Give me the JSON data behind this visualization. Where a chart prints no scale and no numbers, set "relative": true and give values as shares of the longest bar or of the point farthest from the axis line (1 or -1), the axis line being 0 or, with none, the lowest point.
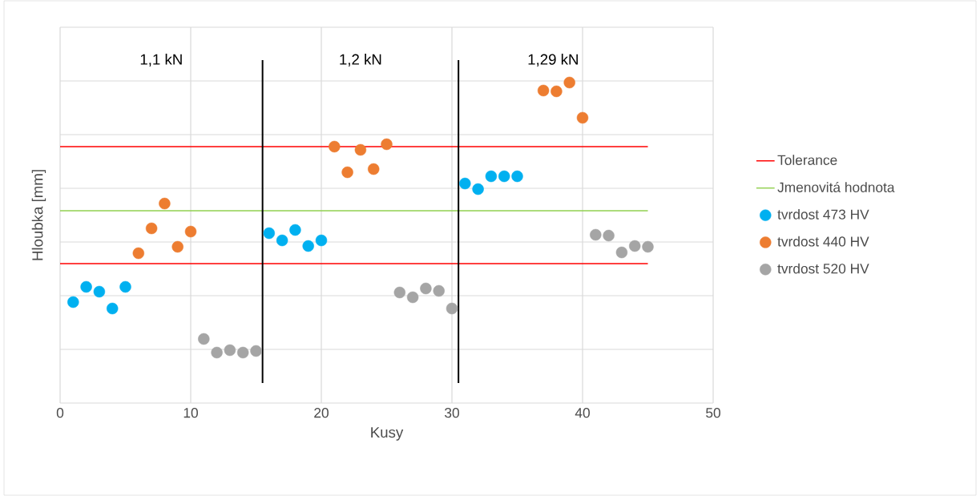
{
  "chart_data": {
    "type": "scatter",
    "relative": true,
    "xlabel": "Kusy",
    "ylabel": "Hloubka [mm]",
    "xlim": [
      0,
      50
    ],
    "xticks": [
      0,
      10,
      20,
      30,
      40,
      50
    ],
    "grid": true,
    "legend": "right",
    "marker": "circle",
    "annotations": [
      "1,1  kN",
      "1,2 kN",
      "1,29 kN"
    ],
    "ref_lines": [
      {
        "axis": "x",
        "value": 15.5,
        "color": "#000000"
      },
      {
        "axis": "x",
        "value": 30.5,
        "color": "#000000"
      }
    ],
    "series": [
      {
        "name": "Tolerance",
        "type": "line",
        "marker": "none",
        "color": "#ff0000",
        "x": [
          0,
          45
        ],
        "values": [
          0.8,
          0.8
        ]
      },
      {
        "name": "Jmenovitá hodnota",
        "type": "line",
        "marker": "none",
        "color": "#92d050",
        "x": [
          0,
          45
        ],
        "values": [
          0.6,
          0.6
        ]
      },
      {
        "type": "line",
        "marker": "none",
        "color": "#ff0000",
        "x": [
          0,
          45
        ],
        "values": [
          0.435,
          0.435
        ]
      },
      {
        "name": "tvrdost 473 HV",
        "color": "#00b0f0",
        "x": [
          1,
          2,
          3,
          4,
          5,
          16,
          17,
          18,
          19,
          20,
          31,
          32,
          33,
          34,
          35
        ],
        "values": [
          0.315,
          0.3625,
          0.3475,
          0.295,
          0.3625,
          0.53,
          0.5075,
          0.54,
          0.49,
          0.5075,
          0.685,
          0.6675,
          0.7075,
          0.7075,
          0.7075
        ]
      },
      {
        "name": "tvrdost 440 HV",
        "color": "#ed7d31",
        "x": [
          6,
          7,
          8,
          9,
          10,
          21,
          22,
          23,
          24,
          25,
          37,
          38,
          39,
          40
        ],
        "values": [
          0.4675,
          0.545,
          0.6225,
          0.4875,
          0.535,
          0.8,
          0.72,
          0.79,
          0.73,
          0.8075,
          0.975,
          0.9725,
          1.0,
          0.89
        ]
      },
      {
        "name": "tvrdost 520 HV",
        "color": "#a5a5a5",
        "x": [
          11,
          12,
          13,
          14,
          15,
          26,
          27,
          28,
          29,
          30,
          41,
          42,
          43,
          44,
          45
        ],
        "values": [
          0.2,
          0.1575,
          0.165,
          0.1575,
          0.1625,
          0.345,
          0.33,
          0.3575,
          0.35,
          0.295,
          0.525,
          0.5225,
          0.47,
          0.49,
          0.4875
        ]
      }
    ]
  }
}
